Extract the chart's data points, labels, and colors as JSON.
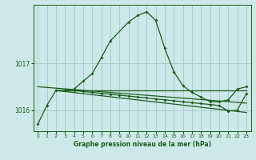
{
  "title": "Graphe pression niveau de la mer (hPa)",
  "background_color": "#cce8e8",
  "grid_color": "#aacccc",
  "line_color": "#1a5c1a",
  "x_ticks": [
    0,
    1,
    2,
    3,
    4,
    5,
    6,
    7,
    8,
    9,
    10,
    11,
    12,
    13,
    14,
    15,
    16,
    17,
    18,
    19,
    20,
    21,
    22,
    23
  ],
  "y_ticks": [
    1016,
    1017
  ],
  "ylim": [
    1015.55,
    1018.25
  ],
  "xlim": [
    -0.5,
    23.5
  ],
  "series_main": {
    "x": [
      0,
      1,
      2,
      3,
      4,
      5,
      6,
      7,
      8,
      10,
      11,
      12,
      13,
      14,
      15,
      16,
      17,
      18,
      19,
      20,
      21,
      22,
      23
    ],
    "y": [
      1015.7,
      1016.1,
      1016.42,
      1016.42,
      1016.45,
      1016.62,
      1016.78,
      1017.12,
      1017.48,
      1017.88,
      1018.02,
      1018.1,
      1017.92,
      1017.32,
      1016.82,
      1016.52,
      1016.38,
      1016.28,
      1016.18,
      1016.18,
      1016.22,
      1016.45,
      1016.5
    ]
  },
  "series_flat1": {
    "x": [
      2,
      3,
      4,
      5,
      6,
      7,
      8,
      9,
      10,
      11,
      12,
      13,
      14,
      15,
      16,
      17,
      18,
      19,
      20,
      21,
      22,
      23
    ],
    "y": [
      1016.42,
      1016.42,
      1016.42,
      1016.42,
      1016.42,
      1016.42,
      1016.42,
      1016.42,
      1016.42,
      1016.42,
      1016.42,
      1016.42,
      1016.42,
      1016.42,
      1016.42,
      1016.42,
      1016.42,
      1016.42,
      1016.42,
      1016.42,
      1016.42,
      1016.42
    ]
  },
  "series_diag1": {
    "x": [
      0,
      23
    ],
    "y": [
      1016.5,
      1016.15
    ]
  },
  "series_diag2": {
    "x": [
      2,
      23
    ],
    "y": [
      1016.42,
      1015.95
    ]
  },
  "series_lower": {
    "x": [
      4,
      5,
      6,
      7,
      8,
      9,
      10,
      11,
      12,
      13,
      14,
      15,
      16,
      17,
      18,
      19,
      20,
      21,
      22,
      23
    ],
    "y": [
      1016.42,
      1016.4,
      1016.38,
      1016.36,
      1016.34,
      1016.32,
      1016.3,
      1016.28,
      1016.26,
      1016.24,
      1016.22,
      1016.2,
      1016.18,
      1016.16,
      1016.14,
      1016.12,
      1016.1,
      1015.98,
      1016.0,
      1016.35
    ]
  }
}
